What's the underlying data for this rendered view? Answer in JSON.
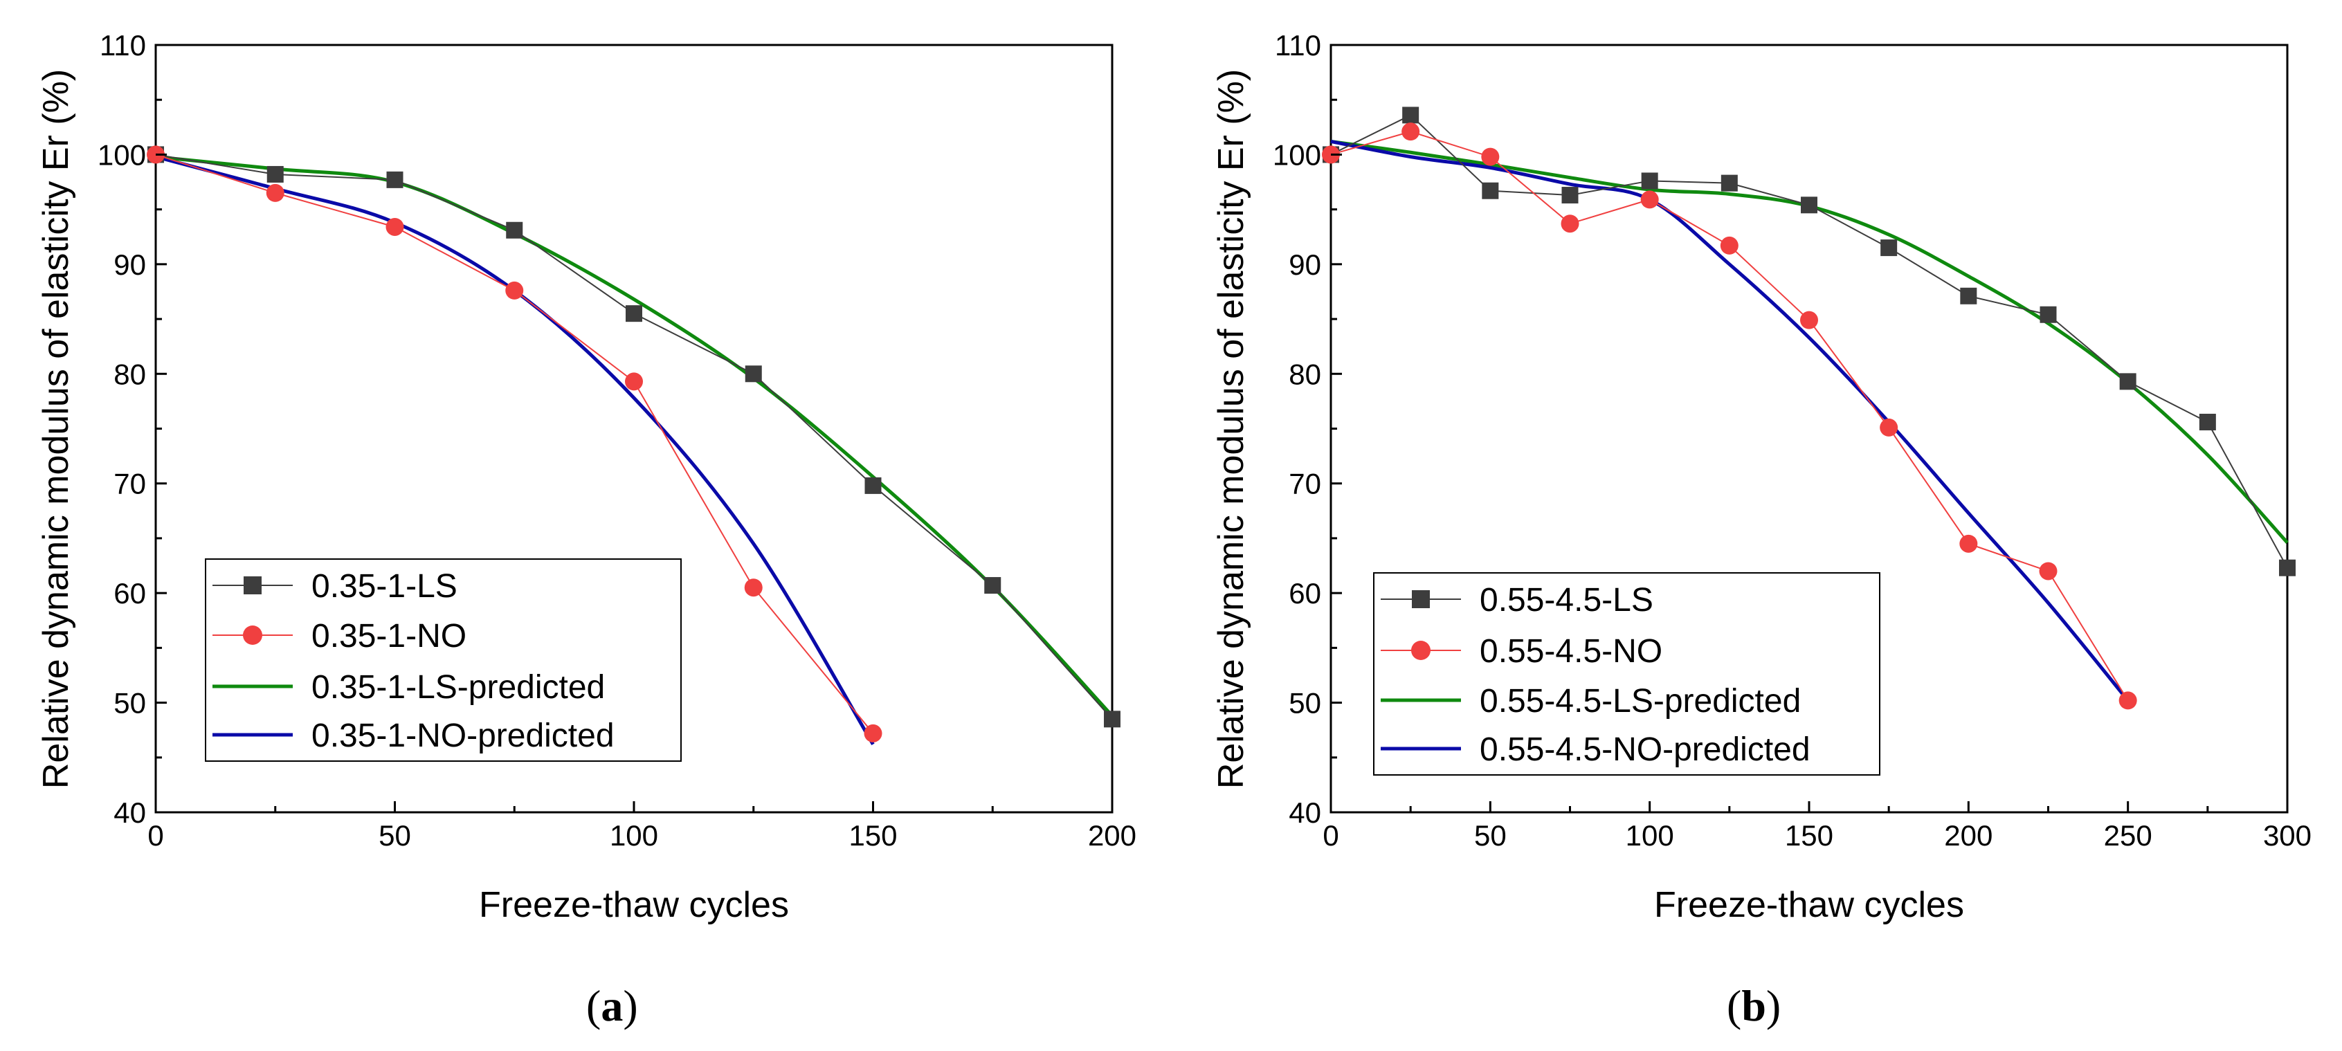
{
  "chart_data": [
    {
      "type": "line",
      "panel_label": "a",
      "title": "",
      "xlabel": "Freeze-thaw cycles",
      "ylabel": "Relative dynamic modulus of elasticity Er (%)",
      "xlim": [
        0,
        200
      ],
      "ylim": [
        40,
        110
      ],
      "xticks": [
        "0",
        "50",
        "100",
        "150",
        "200"
      ],
      "yticks": [
        "40",
        "50",
        "60",
        "70",
        "80",
        "90",
        "100",
        "110"
      ],
      "grid": false,
      "legend_position": "lower-left",
      "series": [
        {
          "name": "0.35-1-LS",
          "style": "markers",
          "marker": "square",
          "color": "#3d3d3d",
          "x": [
            0,
            25,
            50,
            75,
            100,
            125,
            150,
            175,
            200
          ],
          "y": [
            100,
            98.2,
            97.7,
            93.1,
            85.5,
            80.0,
            69.8,
            60.7,
            48.5
          ]
        },
        {
          "name": "0.35-1-NO",
          "style": "markers",
          "marker": "circle",
          "color": "#f04040",
          "x": [
            0,
            25,
            50,
            75,
            100,
            125,
            150
          ],
          "y": [
            100,
            96.5,
            93.4,
            87.6,
            79.3,
            60.5,
            47.2
          ]
        },
        {
          "name": "0.35-1-LS-predicted",
          "style": "line",
          "color": "#0f8a0f",
          "x": [
            0,
            25,
            50,
            75,
            100,
            125,
            150,
            175,
            200
          ],
          "y": [
            99.8,
            98.7,
            97.5,
            92.8,
            86.8,
            79.6,
            70.6,
            60.6,
            48.8
          ]
        },
        {
          "name": "0.35-1-NO-predicted",
          "style": "line",
          "color": "#0a0aa8",
          "x": [
            0,
            25,
            50,
            75,
            100,
            125,
            150
          ],
          "y": [
            99.8,
            96.9,
            93.8,
            87.6,
            77.8,
            64.5,
            46.2
          ]
        }
      ]
    },
    {
      "type": "line",
      "panel_label": "b",
      "title": "",
      "xlabel": "Freeze-thaw cycles",
      "ylabel": "Relative dynamic modulus of elasticity Er (%)",
      "xlim": [
        0,
        300
      ],
      "ylim": [
        40,
        110
      ],
      "xticks": [
        "0",
        "50",
        "100",
        "150",
        "200",
        "250",
        "300"
      ],
      "yticks": [
        "40",
        "50",
        "60",
        "70",
        "80",
        "90",
        "100",
        "110"
      ],
      "grid": false,
      "legend_position": "lower-left",
      "series": [
        {
          "name": "0.55-4.5-LS",
          "style": "markers",
          "marker": "square",
          "color": "#3d3d3d",
          "x": [
            0,
            25,
            50,
            75,
            100,
            125,
            150,
            175,
            200,
            225,
            250,
            275,
            300
          ],
          "y": [
            100,
            103.6,
            96.7,
            96.3,
            97.6,
            97.4,
            95.4,
            91.5,
            87.1,
            85.4,
            79.3,
            75.6,
            62.3
          ]
        },
        {
          "name": "0.55-4.5-NO",
          "style": "markers",
          "marker": "circle",
          "color": "#f04040",
          "x": [
            0,
            25,
            50,
            75,
            100,
            125,
            150,
            175,
            200,
            225,
            250
          ],
          "y": [
            100,
            102.1,
            99.8,
            93.7,
            95.9,
            91.7,
            84.9,
            75.1,
            64.5,
            62.0,
            50.2
          ]
        },
        {
          "name": "0.55-4.5-LS-predicted",
          "style": "line",
          "color": "#0f8a0f",
          "x": [
            0,
            25,
            50,
            75,
            100,
            125,
            150,
            175,
            200,
            225,
            250,
            275,
            300
          ],
          "y": [
            101.2,
            100.2,
            99.1,
            97.9,
            96.8,
            96.4,
            95.3,
            92.7,
            88.9,
            84.6,
            79.2,
            72.6,
            64.6
          ]
        },
        {
          "name": "0.55-4.5-NO-predicted",
          "style": "line",
          "color": "#0a0aa8",
          "x": [
            0,
            25,
            50,
            75,
            100,
            125,
            150,
            175,
            200,
            225,
            250
          ],
          "y": [
            101.2,
            99.8,
            98.8,
            97.3,
            95.9,
            90.0,
            83.3,
            75.6,
            67.3,
            59.1,
            50.2
          ]
        }
      ]
    }
  ]
}
